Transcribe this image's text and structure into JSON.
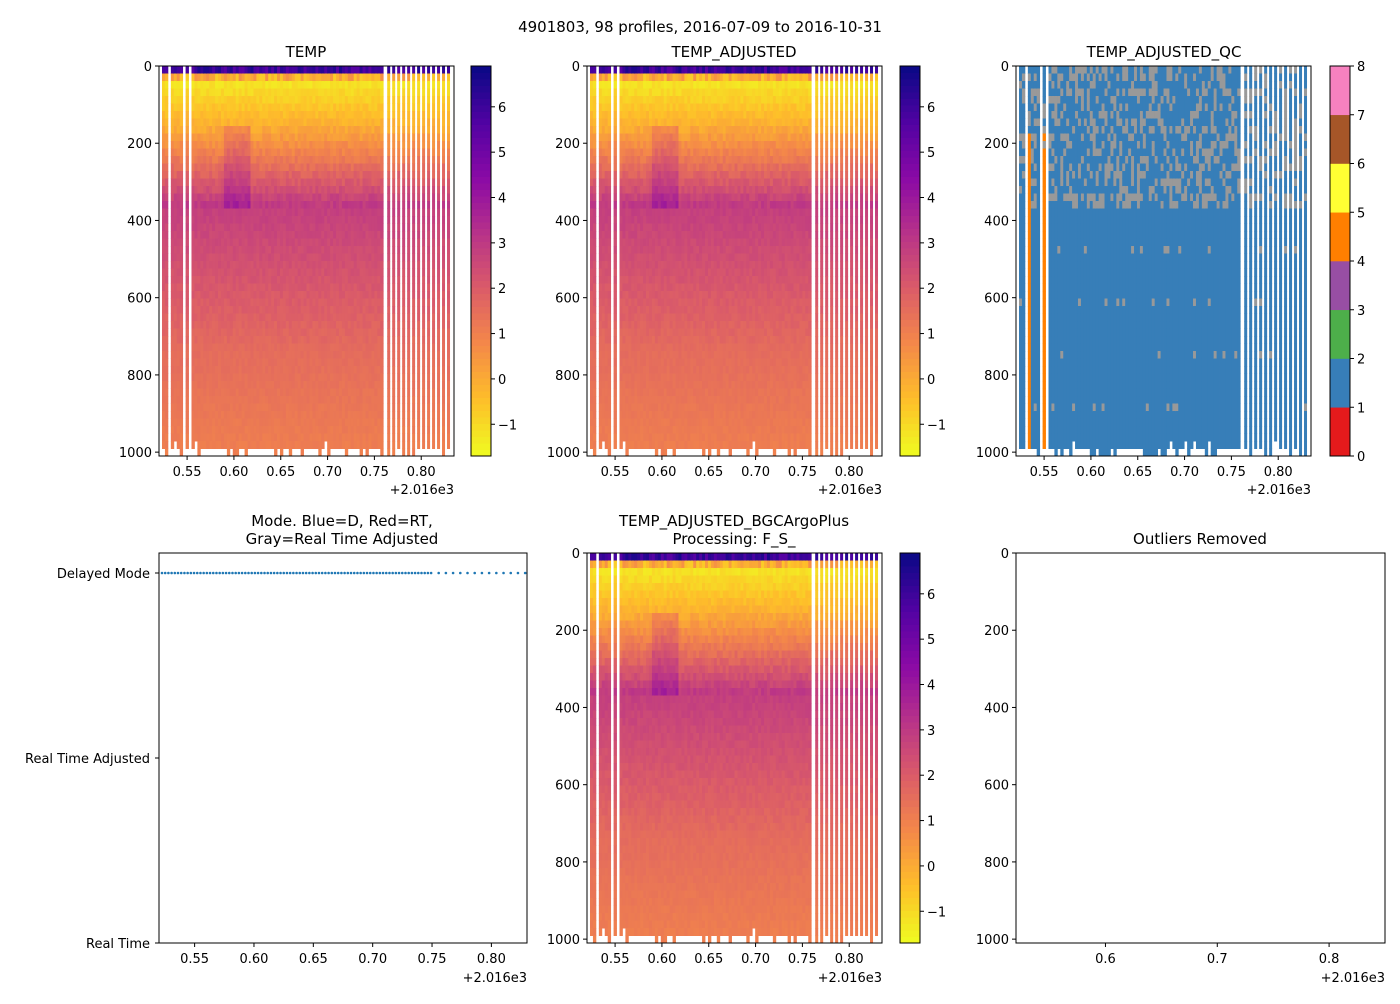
{
  "figure_title": "4901803, 98 profiles, 2016-07-09 to 2016-10-31",
  "offset_label": "+2.016e3",
  "mode_labels": [
    "Delayed Mode",
    "Real Time Adjusted",
    "Real Time"
  ],
  "colors": {
    "plasma": [
      "#0d0887",
      "#5302a3",
      "#8b0aa5",
      "#b83289",
      "#db5c68",
      "#f48849",
      "#febd2a",
      "#f0f921"
    ],
    "qc": [
      "#e41a1c",
      "#377eb8",
      "#4daf4a",
      "#984ea3",
      "#ff7f00",
      "#ffff33",
      "#a65628",
      "#f781bf",
      "#999999"
    ],
    "mode_dots": "#1f77b4"
  },
  "chart_data": [
    {
      "id": "temp",
      "type": "heatmap",
      "title": "TEMP",
      "xlabel": "",
      "ylabel": "",
      "xlim": [
        0.52,
        0.835
      ],
      "ylim": [
        1010,
        0
      ],
      "xticks": [
        "0.55",
        "0.60",
        "0.65",
        "0.70",
        "0.75",
        "0.80"
      ],
      "yticks": [
        "0",
        "200",
        "400",
        "600",
        "800",
        "1000"
      ],
      "colorbar": {
        "range": [
          -1.7,
          6.9
        ],
        "ticks": [
          "-1",
          "0",
          "1",
          "2",
          "3",
          "4",
          "5",
          "6"
        ]
      },
      "profiles": 98,
      "surface_range": [
        -1.7,
        6.9
      ],
      "deep_value": 0.9
    },
    {
      "id": "temp_adj",
      "type": "heatmap",
      "title": "TEMP_ADJUSTED",
      "xlabel": "",
      "ylabel": "",
      "xlim": [
        0.52,
        0.835
      ],
      "ylim": [
        1010,
        0
      ],
      "xticks": [
        "0.55",
        "0.60",
        "0.65",
        "0.70",
        "0.75",
        "0.80"
      ],
      "yticks": [
        "0",
        "200",
        "400",
        "600",
        "800",
        "1000"
      ],
      "colorbar": {
        "range": [
          -1.7,
          6.9
        ],
        "ticks": [
          "-1",
          "0",
          "1",
          "2",
          "3",
          "4",
          "5",
          "6"
        ]
      },
      "profiles": 98
    },
    {
      "id": "temp_qc",
      "type": "heatmap",
      "title": "TEMP_ADJUSTED_QC",
      "xlabel": "",
      "ylabel": "",
      "xlim": [
        0.52,
        0.835
      ],
      "ylim": [
        1010,
        0
      ],
      "xticks": [
        "0.55",
        "0.60",
        "0.65",
        "0.70",
        "0.75",
        "0.80"
      ],
      "yticks": [
        "0",
        "200",
        "400",
        "600",
        "800",
        "1000"
      ],
      "colorbar": {
        "range": [
          0,
          8
        ],
        "ticks": [
          "0",
          "1",
          "2",
          "3",
          "4",
          "5",
          "6",
          "7",
          "8"
        ]
      },
      "dominant_flag": 1,
      "secondary_flags": [
        4,
        8
      ]
    },
    {
      "id": "mode",
      "type": "scatter",
      "title": "Mode. Blue=D, Red=RT,",
      "subtitle": "Gray=Real Time Adjusted",
      "xlabel": "",
      "ylabel": "",
      "xlim": [
        0.52,
        0.83
      ],
      "xticks": [
        "0.55",
        "0.60",
        "0.65",
        "0.70",
        "0.75",
        "0.80"
      ],
      "yticks": [
        "Delayed Mode",
        "Real Time Adjusted",
        "Real Time"
      ],
      "series": [
        {
          "name": "Delayed Mode",
          "value": "Delayed Mode",
          "count": 98
        }
      ]
    },
    {
      "id": "temp_bgc",
      "type": "heatmap",
      "title": "TEMP_ADJUSTED_BGCArgoPlus",
      "subtitle": "Processing: F_S_",
      "xlabel": "",
      "ylabel": "",
      "xlim": [
        0.52,
        0.835
      ],
      "ylim": [
        1010,
        0
      ],
      "xticks": [
        "0.55",
        "0.60",
        "0.65",
        "0.70",
        "0.75",
        "0.80"
      ],
      "yticks": [
        "0",
        "200",
        "400",
        "600",
        "800",
        "1000"
      ],
      "colorbar": {
        "range": [
          -1.7,
          6.9
        ],
        "ticks": [
          "-1",
          "0",
          "1",
          "2",
          "3",
          "4",
          "5",
          "6"
        ]
      },
      "profiles": 98
    },
    {
      "id": "outliers",
      "type": "scatter",
      "title": "Outliers Removed",
      "xlabel": "",
      "ylabel": "",
      "xlim": [
        0.52,
        0.85
      ],
      "ylim": [
        1010,
        0
      ],
      "xticks": [
        "0.6",
        "0.7",
        "0.8"
      ],
      "yticks": [
        "0",
        "200",
        "400",
        "600",
        "800",
        "1000"
      ],
      "series": []
    }
  ]
}
